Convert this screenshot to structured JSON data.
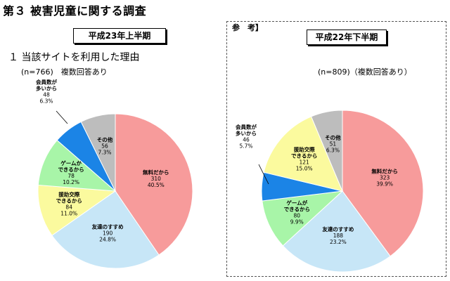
{
  "title": "第３ 被害児童に関する調査",
  "reference_label": "参　考】",
  "section_heading": "１ 当該サイトを利用した理由",
  "chart_data": [
    {
      "type": "pie",
      "period": "平成23年上半期",
      "note": "(n=766)　複数回答あり",
      "slices": [
        {
          "name": "無料だから",
          "value": 310,
          "percent": "40.5%",
          "color": "#f79b9b"
        },
        {
          "name": "友達のすすめ",
          "value": 190,
          "percent": "24.8%",
          "color": "#c7e6f7"
        },
        {
          "name": "援助交際できるから",
          "value": 84,
          "percent": "11.0%",
          "color": "#fbfa9e"
        },
        {
          "name": "ゲームができるから",
          "value": 78,
          "percent": "10.2%",
          "color": "#a8f5a8"
        },
        {
          "name": "会員数が多いから",
          "value": 48,
          "percent": "6.3%",
          "color": "#1b84e6"
        },
        {
          "name": "その他",
          "value": 56,
          "percent": "7.3%",
          "color": "#bdbdbd"
        }
      ]
    },
    {
      "type": "pie",
      "period": "平成22年下半期",
      "note": "(n=809)（複数回答あり）",
      "slices": [
        {
          "name": "無料だから",
          "value": 323,
          "percent": "39.9%",
          "color": "#f79b9b"
        },
        {
          "name": "友達のすすめ",
          "value": 188,
          "percent": "23.2%",
          "color": "#c7e6f7"
        },
        {
          "name": "ゲームができるから",
          "value": 80,
          "percent": "9.9%",
          "color": "#a8f5a8"
        },
        {
          "name": "会員数が多いから",
          "value": 46,
          "percent": "5.7%",
          "color": "#1b84e6"
        },
        {
          "name": "援助交際できるから",
          "value": 121,
          "percent": "15.0%",
          "color": "#fbfa9e"
        },
        {
          "name": "その他",
          "value": 51,
          "percent": "6.3%",
          "color": "#bdbdbd"
        }
      ]
    }
  ]
}
